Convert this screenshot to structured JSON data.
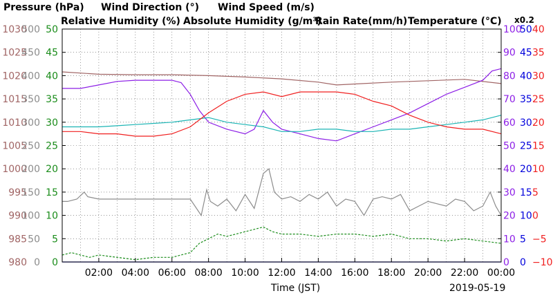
{
  "chart_data": {
    "type": "line",
    "date": "2019-05-19",
    "xlabel": "Time (JST)",
    "x_ticks": [
      "02:00",
      "04:00",
      "06:00",
      "08:00",
      "10:00",
      "12:00",
      "14:00",
      "16:00",
      "18:00",
      "20:00",
      "22:00",
      "00:00"
    ],
    "x_range_hours": [
      0,
      24
    ],
    "grid": true,
    "legend": {
      "row1": [
        {
          "text": "Pressure (hPa)",
          "color": "#a06464"
        },
        {
          "text": "Wind Direction (°)",
          "color": "#8c8c8c"
        },
        {
          "text": "Wind Speed (m/s)",
          "color": "#1a8c1a"
        }
      ],
      "row2": [
        {
          "text": "Relative Humidity (%)",
          "color": "#8c1ee6"
        },
        {
          "text": "Absolute Humidity (g/m³)",
          "color": "#1ab4b4"
        },
        {
          "text": "Rain Rate(mm/h)",
          "color": "#0000dc"
        },
        {
          "text": "Temperature (°C)",
          "color": "#f01e1e"
        }
      ],
      "abs_humidity_factor": "x0.2"
    },
    "axes": {
      "pressure": {
        "ticks": [
          "1030",
          "1025",
          "1020",
          "1015",
          "1010",
          "1005",
          "1000",
          "995",
          "990",
          "985",
          "980"
        ],
        "range": [
          980,
          1030
        ],
        "color": "#a06464"
      },
      "wind_direction": {
        "ticks": [
          "500",
          "450",
          "400",
          "350",
          "300",
          "250",
          "200",
          "150",
          "100",
          "50",
          "0"
        ],
        "range": [
          0,
          500
        ],
        "color": "#8c8c8c"
      },
      "wind_speed": {
        "ticks": [
          "50",
          "45",
          "40",
          "35",
          "30",
          "25",
          "20",
          "15",
          "10",
          "5",
          "0"
        ],
        "range": [
          0,
          50
        ],
        "color": "#1a8c1a"
      },
      "humidity": {
        "ticks": [
          "100",
          "90",
          "80",
          "70",
          "60",
          "50",
          "40",
          "30",
          "20",
          "10",
          "0"
        ],
        "range": [
          0,
          100
        ],
        "color": "#8c1ee6"
      },
      "rain_rate": {
        "ticks": [
          "50",
          "45",
          "40",
          "35",
          "30",
          "25",
          "20",
          "15",
          "10",
          "5",
          "0"
        ],
        "range": [
          0,
          50
        ],
        "color": "#0000dc"
      },
      "temperature": {
        "ticks": [
          "40",
          "35",
          "30",
          "25",
          "20",
          "15",
          "10",
          "5",
          "0",
          "−5",
          "−10"
        ],
        "range": [
          -10,
          40
        ],
        "color": "#f01e1e"
      }
    },
    "series": [
      {
        "name": "Pressure (hPa)",
        "axis": "pressure",
        "color": "#a06464",
        "x": [
          0,
          2,
          4,
          6,
          8,
          10,
          12,
          14,
          15,
          16,
          18,
          20,
          22,
          24
        ],
        "y": [
          1020.8,
          1020.3,
          1020.2,
          1020.2,
          1020.0,
          1019.7,
          1019.3,
          1018.6,
          1018.0,
          1018.2,
          1018.6,
          1018.9,
          1019.2,
          1018.3
        ]
      },
      {
        "name": "Wind Direction (°)",
        "axis": "wind_direction",
        "color": "#8c8c8c",
        "x": [
          0,
          0.3,
          0.8,
          1.2,
          1.4,
          2,
          3,
          4,
          5,
          6,
          7,
          7.6,
          7.9,
          8.1,
          8.5,
          9,
          9.5,
          10,
          10.5,
          11,
          11.3,
          11.6,
          12,
          12.5,
          13,
          13.5,
          14,
          14.5,
          15,
          15.5,
          16,
          16.5,
          17,
          17.5,
          18,
          18.5,
          19,
          19.5,
          20,
          20.5,
          21,
          21.5,
          22,
          22.5,
          23,
          23.4,
          23.7,
          24
        ],
        "y": [
          130,
          130,
          135,
          150,
          140,
          135,
          135,
          135,
          135,
          135,
          135,
          100,
          155,
          130,
          120,
          135,
          110,
          145,
          115,
          190,
          200,
          150,
          135,
          140,
          130,
          145,
          135,
          150,
          120,
          135,
          130,
          100,
          135,
          140,
          135,
          145,
          110,
          120,
          130,
          125,
          120,
          135,
          130,
          110,
          120,
          150,
          120,
          100
        ]
      },
      {
        "name": "Wind Speed (m/s)",
        "axis": "wind_speed",
        "color": "#1a8c1a",
        "x": [
          0,
          0.5,
          1,
          1.5,
          2,
          3,
          4,
          5,
          6,
          7,
          7.5,
          8,
          8.5,
          9,
          9.5,
          10,
          10.5,
          11,
          11.5,
          12,
          13,
          14,
          15,
          16,
          17,
          18,
          19,
          20,
          21,
          22,
          23,
          24
        ],
        "y": [
          1.5,
          2,
          1.5,
          1,
          1.5,
          1,
          0.5,
          1,
          1,
          2,
          4,
          5,
          6,
          5.5,
          6,
          6.5,
          7,
          7.5,
          6.5,
          6,
          6,
          5.5,
          6,
          6,
          5.5,
          6,
          5,
          5,
          4.5,
          5,
          4.5,
          4
        ]
      },
      {
        "name": "Relative Humidity (%)",
        "axis": "humidity",
        "color": "#8c1ee6",
        "x": [
          0,
          1,
          2,
          3,
          4,
          5,
          6,
          6.5,
          7,
          7.5,
          8,
          9,
          10,
          10.5,
          11,
          11.5,
          12,
          13,
          14,
          15,
          16,
          17,
          18,
          19,
          20,
          21,
          22,
          23,
          23.5,
          24
        ],
        "y": [
          74.5,
          74.5,
          76,
          77.5,
          78,
          78,
          78,
          77,
          72,
          65,
          60,
          57,
          55,
          57,
          65,
          60,
          57,
          55,
          53,
          52,
          55,
          58,
          61,
          64,
          68,
          72,
          75,
          78,
          82,
          83
        ]
      },
      {
        "name": "Absolute Humidity (g/m³)",
        "axis": "humidity",
        "color": "#1ab4b4",
        "x": [
          0,
          1,
          2,
          3,
          4,
          5,
          6,
          7,
          8,
          9,
          10,
          11,
          12,
          13,
          14,
          15,
          16,
          17,
          18,
          19,
          20,
          21,
          22,
          23,
          24
        ],
        "y": [
          58,
          58,
          58,
          58.5,
          59,
          59.5,
          60,
          61,
          62,
          60,
          59,
          58,
          56,
          56,
          57,
          57,
          56,
          56,
          57,
          57,
          58,
          59,
          60,
          61,
          63
        ]
      },
      {
        "name": "Rain Rate(mm/h)",
        "axis": "rain_rate",
        "color": "#0000dc",
        "x": [
          0,
          24
        ],
        "y": [
          0,
          0
        ]
      },
      {
        "name": "Temperature (°C)",
        "axis": "temperature",
        "color": "#f01e1e",
        "x": [
          0,
          1,
          2,
          3,
          4,
          5,
          6,
          7,
          8,
          9,
          10,
          11,
          12,
          13,
          14,
          15,
          16,
          17,
          18,
          19,
          20,
          21,
          22,
          23,
          24
        ],
        "y": [
          18,
          18,
          17.5,
          17.5,
          17,
          17,
          17.5,
          19,
          22,
          24.5,
          26,
          26.5,
          25.5,
          26.5,
          26.5,
          26.5,
          26,
          24.5,
          23.5,
          21.5,
          20,
          19,
          18.5,
          18.5,
          17.5
        ]
      }
    ]
  }
}
